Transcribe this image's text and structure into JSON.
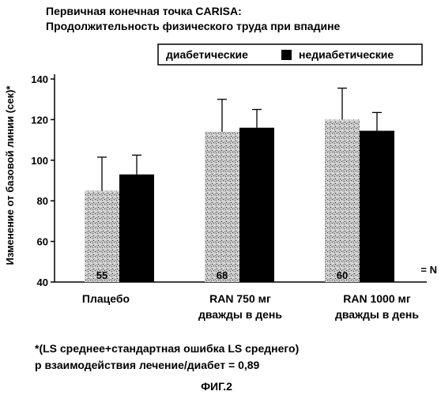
{
  "chart_data": {
    "type": "bar",
    "title_lines": [
      "Первичная конечная точка CARISA:",
      "Продолжительность физического труда при впадине"
    ],
    "ylabel": "Изменение от базовой линии (сек)*",
    "ylim": [
      40,
      140
    ],
    "yticks": [
      40,
      60,
      80,
      100,
      120,
      140
    ],
    "grid": false,
    "legend_position": "top-right",
    "categories": [
      [
        "Плацебо"
      ],
      [
        "RAN 750 мг",
        "дважды в день"
      ],
      [
        "RAN 1000 мг",
        "дважды в день"
      ]
    ],
    "series": [
      {
        "name": "диабетические",
        "color": "#b8b8b8",
        "pattern": "stipple",
        "values": [
          85,
          114,
          120
        ],
        "error": [
          16.5,
          16,
          15.5
        ]
      },
      {
        "name": "недиабетические",
        "color": "#000000",
        "pattern": "solid",
        "values": [
          93,
          116,
          114.5
        ],
        "error": [
          9.5,
          9,
          9
        ]
      }
    ],
    "n_labels": [
      "55",
      "68",
      "60"
    ],
    "n_suffix": "= N",
    "footnotes": [
      "*(LS среднее+стандартная ошибка LS среднего)",
      "р взаимодействия лечение/диабет = 0,89"
    ],
    "figure_label": "ФИГ.2"
  }
}
